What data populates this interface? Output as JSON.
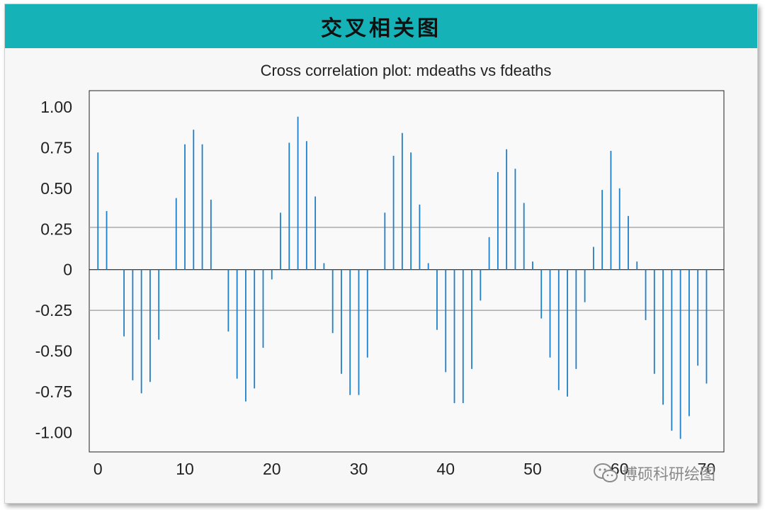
{
  "banner": {
    "title": "交叉相关图"
  },
  "watermark": {
    "text": "博硕科研绘图",
    "icon": "wechat-icon"
  },
  "colors": {
    "banner": "#15b3b8",
    "bars": "#1f7fc8",
    "bounds": "#9a9a9a"
  },
  "chart_data": {
    "type": "bar",
    "title": "Cross correlation plot: mdeaths vs fdeaths",
    "xlabel": "",
    "ylabel": "",
    "xlim": [
      -1,
      72
    ],
    "ylim": [
      -1.12,
      1.1
    ],
    "xticks": [
      0,
      10,
      20,
      30,
      40,
      50,
      60,
      70
    ],
    "yticks": [
      1.0,
      0.75,
      0.5,
      0.25,
      0,
      -0.25,
      -0.5,
      -0.75,
      -1.0
    ],
    "ytick_labels": [
      "1.00",
      "0.75",
      "0.50",
      "0.25",
      "0",
      "-0.25",
      "-0.50",
      "-0.75",
      "-1.00"
    ],
    "confidence_bounds": [
      0.26,
      -0.25
    ],
    "grid": false,
    "x": [
      0,
      1,
      2,
      3,
      4,
      5,
      6,
      7,
      8,
      9,
      10,
      11,
      12,
      13,
      14,
      15,
      16,
      17,
      18,
      19,
      20,
      21,
      22,
      23,
      24,
      25,
      26,
      27,
      28,
      29,
      30,
      31,
      32,
      33,
      34,
      35,
      36,
      37,
      38,
      39,
      40,
      41,
      42,
      43,
      44,
      45,
      46,
      47,
      48,
      49,
      50,
      51,
      52,
      53,
      54,
      55,
      56,
      57,
      58,
      59,
      60,
      61,
      62,
      63,
      64,
      65,
      66,
      67,
      68,
      69,
      70,
      71
    ],
    "values": [
      0.72,
      0.36,
      0.0,
      -0.41,
      -0.68,
      -0.76,
      -0.69,
      -0.43,
      0.0,
      0.44,
      0.77,
      0.86,
      0.77,
      0.43,
      0.0,
      -0.38,
      -0.67,
      -0.81,
      -0.73,
      -0.48,
      -0.06,
      0.35,
      0.78,
      0.94,
      0.79,
      0.45,
      0.04,
      -0.39,
      -0.64,
      -0.77,
      -0.77,
      -0.54,
      0.0,
      0.35,
      0.7,
      0.84,
      0.72,
      0.4,
      0.04,
      -0.37,
      -0.63,
      -0.82,
      -0.82,
      -0.61,
      -0.19,
      0.2,
      0.6,
      0.74,
      0.62,
      0.41,
      0.05,
      -0.3,
      -0.54,
      -0.74,
      -0.78,
      -0.61,
      -0.2,
      0.14,
      0.49,
      0.73,
      0.5,
      0.33,
      0.05,
      -0.31,
      -0.64,
      -0.83,
      -0.99,
      -1.04,
      -0.9,
      -0.59,
      -0.7,
      0.0
    ]
  }
}
